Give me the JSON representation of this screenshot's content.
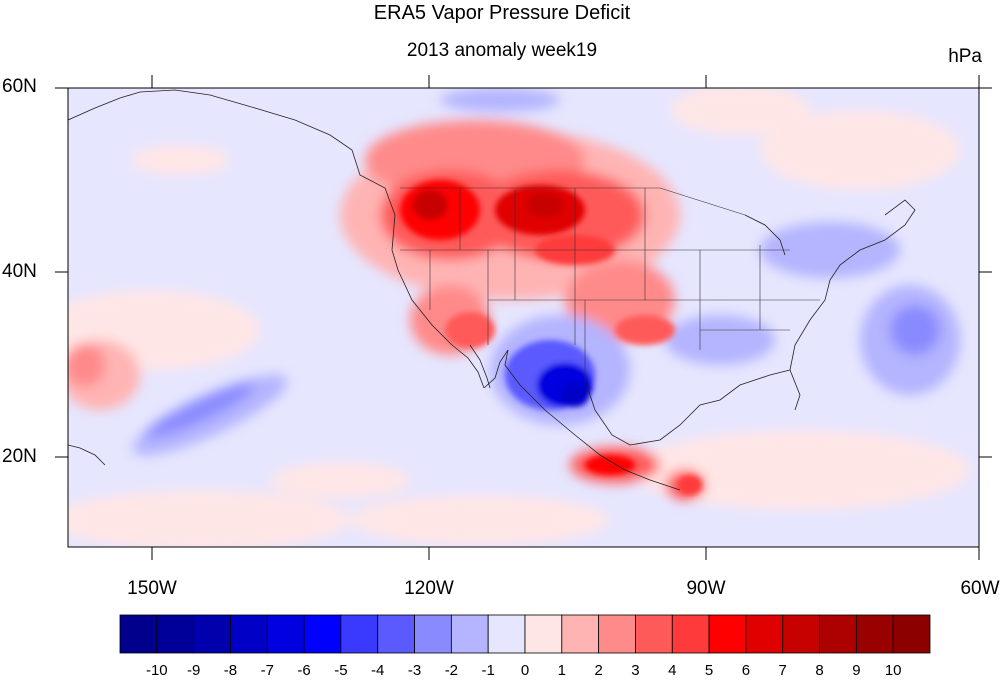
{
  "title": "ERA5 Vapor Pressure Deficit",
  "subtitle": "2013 anomaly week19",
  "units": "hPa",
  "map": {
    "lat_labels": [
      "60N",
      "40N",
      "20N"
    ],
    "lon_labels": [
      "150W",
      "120W",
      "90W",
      "60W"
    ],
    "lon_range": [
      -159,
      -61
    ],
    "lat_range": [
      10,
      60
    ]
  },
  "colorbar": {
    "labels": [
      "-10",
      "-9",
      "-8",
      "-7",
      "-6",
      "-5",
      "-4",
      "-3",
      "-2",
      "-1",
      "0",
      "1",
      "2",
      "3",
      "4",
      "5",
      "6",
      "7",
      "8",
      "9",
      "10"
    ],
    "colors": [
      "#00008c",
      "#000099",
      "#0000ad",
      "#0000c7",
      "#0000e0",
      "#0000ff",
      "#3a3aff",
      "#5a5aff",
      "#8a8aff",
      "#b4b4ff",
      "#e6e6ff",
      "#ffe6e6",
      "#ffb4b4",
      "#ff8a8a",
      "#ff5a5a",
      "#ff3a3a",
      "#ff0000",
      "#e00000",
      "#c70000",
      "#ad0000",
      "#990000",
      "#8c0000"
    ]
  }
}
